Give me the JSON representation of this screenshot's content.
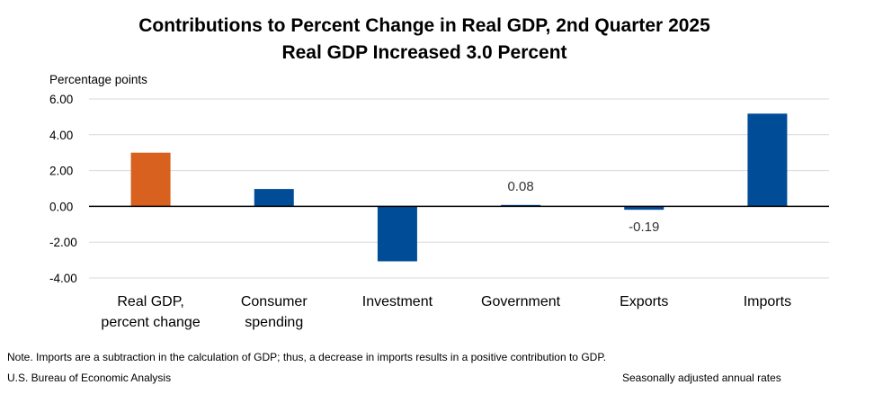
{
  "chart_data": {
    "type": "bar",
    "title": "Contributions to Percent Change in Real GDP, 2nd Quarter 2025",
    "subtitle": "Real GDP Increased 3.0 Percent",
    "ylabel": "Percentage points",
    "xlabel": "",
    "ylim": [
      -4,
      6
    ],
    "yticks": [
      "6.00",
      "4.00",
      "2.00",
      "0.00",
      "-2.00",
      "-4.00"
    ],
    "categories": [
      [
        "Real GDP,",
        "percent change"
      ],
      [
        "Consumer",
        "spending"
      ],
      [
        "Investment"
      ],
      [
        "Government"
      ],
      [
        "Exports"
      ],
      [
        "Imports"
      ]
    ],
    "values": [
      3.0,
      0.97,
      -3.07,
      0.08,
      -0.19,
      5.18
    ],
    "data_labels": [
      "",
      "",
      "",
      "0.08",
      "-0.19",
      ""
    ],
    "colors": [
      "#d9611f",
      "#004c97",
      "#004c97",
      "#004c97",
      "#004c97",
      "#004c97"
    ],
    "grid": true
  },
  "footer": {
    "note": "Note. Imports are a subtraction in the calculation of GDP; thus, a decrease in imports results in a positive contribution to GDP.",
    "source": "U.S. Bureau of Economic Analysis",
    "adjustment": "Seasonally adjusted annual rates"
  }
}
